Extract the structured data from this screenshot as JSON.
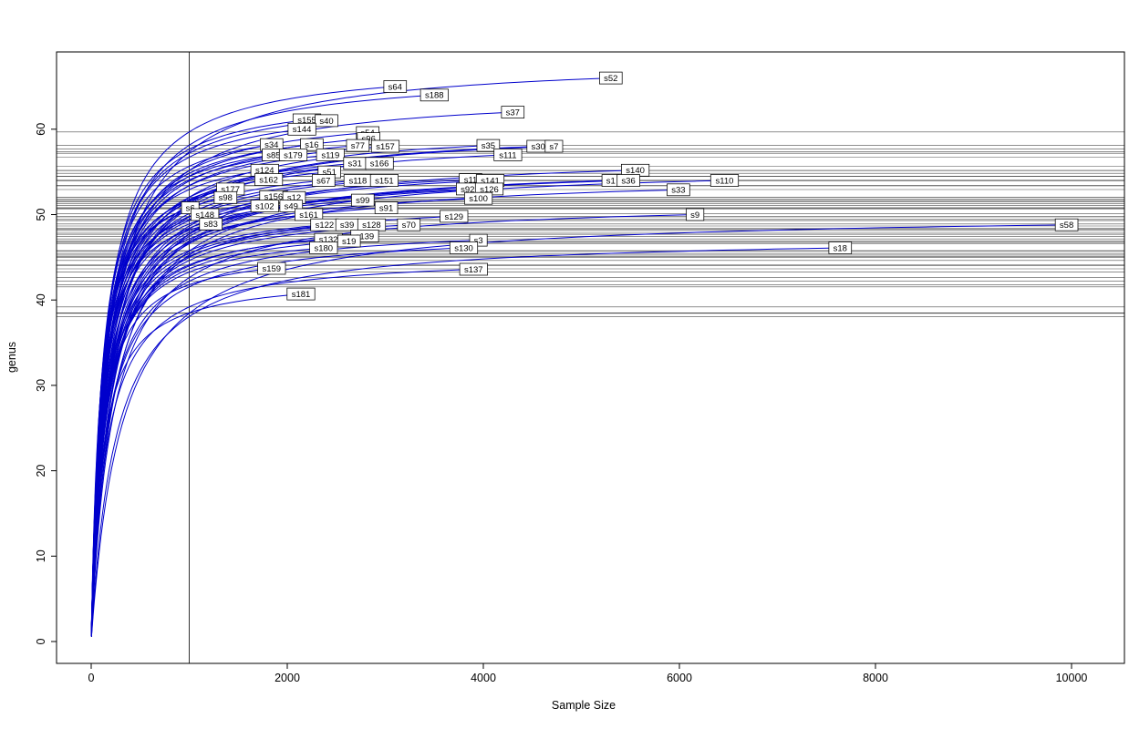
{
  "chart_data": {
    "type": "line",
    "title": "",
    "xlabel": "Sample Size",
    "ylabel": "genus",
    "xlim": [
      -350,
      10530
    ],
    "ylim": [
      -2.5,
      68.8
    ],
    "x_ticks": [
      0,
      2000,
      4000,
      6000,
      8000,
      10000
    ],
    "y_ticks": [
      0,
      10,
      20,
      30,
      40,
      50,
      60
    ],
    "grid": false,
    "legend": "none",
    "sample_vline": 1000,
    "curve_color": "#0000cc",
    "refline_color": "#4d4d4d",
    "axis_color": "#000000",
    "label_box_fill": "#ffffff",
    "label_box_border": "#000000",
    "series": [
      {
        "name": "s52",
        "n": 5300,
        "s": 66.0
      },
      {
        "name": "s64",
        "n": 3100,
        "s": 65.0
      },
      {
        "name": "s188",
        "n": 3500,
        "s": 64.0
      },
      {
        "name": "s37",
        "n": 4300,
        "s": 62.0
      },
      {
        "name": "s155",
        "n": 2200,
        "s": 61.1
      },
      {
        "name": "s40",
        "n": 2400,
        "s": 61.0
      },
      {
        "name": "s144",
        "n": 2150,
        "s": 60.0
      },
      {
        "name": "s54",
        "n": 2820,
        "s": 59.6
      },
      {
        "name": "s96",
        "n": 2830,
        "s": 58.9
      },
      {
        "name": "s34",
        "n": 1840,
        "s": 58.2
      },
      {
        "name": "s16",
        "n": 2250,
        "s": 58.2
      },
      {
        "name": "s77",
        "n": 2720,
        "s": 58.1
      },
      {
        "name": "s157",
        "n": 3000,
        "s": 58.0
      },
      {
        "name": "s35",
        "n": 4050,
        "s": 58.1
      },
      {
        "name": "s30",
        "n": 4560,
        "s": 58.0
      },
      {
        "name": "s7",
        "n": 4720,
        "s": 58.0
      },
      {
        "name": "s111",
        "n": 4250,
        "s": 57.0
      },
      {
        "name": "s85",
        "n": 1860,
        "s": 57.0
      },
      {
        "name": "s179",
        "n": 2060,
        "s": 57.0
      },
      {
        "name": "s119",
        "n": 2440,
        "s": 57.0
      },
      {
        "name": "s31",
        "n": 2690,
        "s": 56.0
      },
      {
        "name": "s166",
        "n": 2940,
        "s": 56.0
      },
      {
        "name": "s124",
        "n": 1770,
        "s": 55.2
      },
      {
        "name": "s51",
        "n": 2430,
        "s": 55.0
      },
      {
        "name": "s140",
        "n": 5550,
        "s": 55.2
      },
      {
        "name": "s162",
        "n": 1810,
        "s": 54.1
      },
      {
        "name": "s67",
        "n": 2370,
        "s": 54.0
      },
      {
        "name": "s118",
        "n": 2720,
        "s": 54.0
      },
      {
        "name": "s151",
        "n": 2990,
        "s": 54.0
      },
      {
        "name": "s11",
        "n": 3870,
        "s": 54.1
      },
      {
        "name": "s141",
        "n": 4070,
        "s": 54.0
      },
      {
        "name": "s1",
        "n": 5300,
        "s": 54.0
      },
      {
        "name": "s36",
        "n": 5480,
        "s": 54.0
      },
      {
        "name": "s110",
        "n": 6460,
        "s": 54.0
      },
      {
        "name": "s177",
        "n": 1420,
        "s": 53.0
      },
      {
        "name": "s92",
        "n": 3840,
        "s": 53.0
      },
      {
        "name": "s126",
        "n": 4060,
        "s": 53.0
      },
      {
        "name": "s33",
        "n": 5990,
        "s": 52.9
      },
      {
        "name": "s98",
        "n": 1370,
        "s": 52.0
      },
      {
        "name": "s156",
        "n": 1860,
        "s": 52.1
      },
      {
        "name": "s12",
        "n": 2070,
        "s": 52.0
      },
      {
        "name": "s99",
        "n": 2770,
        "s": 51.7
      },
      {
        "name": "s100",
        "n": 3950,
        "s": 51.9
      },
      {
        "name": "s6",
        "n": 1010,
        "s": 50.8
      },
      {
        "name": "s102",
        "n": 1770,
        "s": 51.0
      },
      {
        "name": "s49",
        "n": 2040,
        "s": 51.0
      },
      {
        "name": "s91",
        "n": 3010,
        "s": 50.8
      },
      {
        "name": "s148",
        "n": 1160,
        "s": 50.0
      },
      {
        "name": "s161",
        "n": 2220,
        "s": 50.0
      },
      {
        "name": "s129",
        "n": 3700,
        "s": 49.8
      },
      {
        "name": "s9",
        "n": 6160,
        "s": 50.0
      },
      {
        "name": "s83",
        "n": 1220,
        "s": 48.9
      },
      {
        "name": "s122",
        "n": 2380,
        "s": 48.8
      },
      {
        "name": "s39",
        "n": 2610,
        "s": 48.8
      },
      {
        "name": "s128",
        "n": 2860,
        "s": 48.8
      },
      {
        "name": "s70",
        "n": 3240,
        "s": 48.8
      },
      {
        "name": "s58",
        "n": 9950,
        "s": 48.8
      },
      {
        "name": "s132",
        "n": 2420,
        "s": 47.1
      },
      {
        "name": "s139",
        "n": 2790,
        "s": 47.5
      },
      {
        "name": "s19",
        "n": 2630,
        "s": 46.9
      },
      {
        "name": "s3",
        "n": 3950,
        "s": 47.0
      },
      {
        "name": "s180",
        "n": 2370,
        "s": 46.1
      },
      {
        "name": "s130",
        "n": 3800,
        "s": 46.1
      },
      {
        "name": "s18",
        "n": 7640,
        "s": 46.1
      },
      {
        "name": "s159",
        "n": 1840,
        "s": 43.7
      },
      {
        "name": "s137",
        "n": 3900,
        "s": 43.6
      },
      {
        "name": "s181",
        "n": 2140,
        "s": 40.7
      }
    ]
  }
}
